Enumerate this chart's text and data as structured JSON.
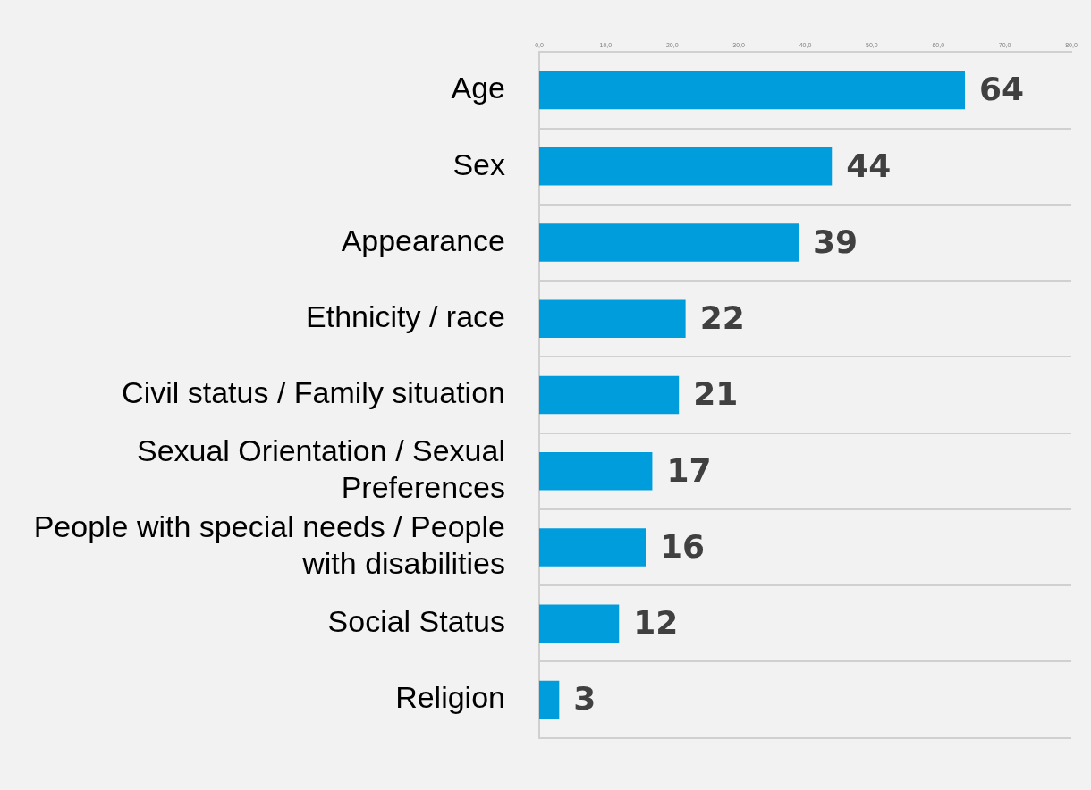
{
  "chart_data": {
    "type": "bar",
    "orientation": "horizontal",
    "categories": [
      "Age",
      "Sex",
      "Appearance",
      "Ethnicity / race",
      "Civil status / Family situation",
      "Sexual Orientation / Sexual Preferences",
      "People with special needs / People with disabilities",
      "Social Status",
      "Religion"
    ],
    "values": [
      64,
      44,
      39,
      22,
      21,
      17,
      16,
      12,
      3
    ],
    "color": "#009ddc",
    "data_labels": true,
    "grid": "y",
    "legend": false,
    "xlim": [
      0,
      80
    ],
    "xticks": [
      {
        "value": 0,
        "label": "0,0"
      },
      {
        "value": 10,
        "label": "10,0"
      },
      {
        "value": 20,
        "label": "20,0"
      },
      {
        "value": 30,
        "label": "30,0"
      },
      {
        "value": 40,
        "label": "40,0"
      },
      {
        "value": 50,
        "label": "50,0"
      },
      {
        "value": 60,
        "label": "60,0"
      },
      {
        "value": 70,
        "label": "70,0"
      },
      {
        "value": 80,
        "label": "80,0"
      }
    ]
  }
}
